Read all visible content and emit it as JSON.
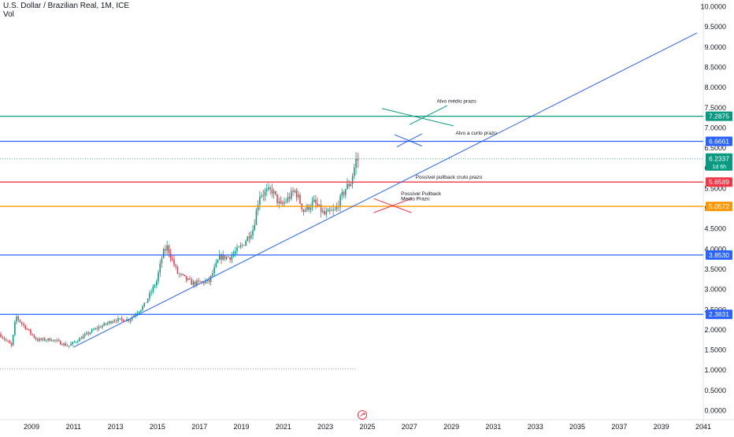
{
  "header": {
    "title": "U.S. Dollar / Brazilian Real, 1M, ICE",
    "vol_label": "Vol"
  },
  "chart_data": {
    "type": "candlestick",
    "x_start": 2008.0,
    "x_end": 2041.5,
    "ylim": [
      -0.1,
      10.1
    ],
    "x_ticks": [
      "2009",
      "2011",
      "2013",
      "2015",
      "2017",
      "2019",
      "2021",
      "2023",
      "2025",
      "2027",
      "2029",
      "2031",
      "2033",
      "2035",
      "2037",
      "2039",
      "2041"
    ],
    "y_ticks": [
      "0.0000",
      "0.5000",
      "1.0000",
      "1.5000",
      "2.0000",
      "2.5000",
      "3.0000",
      "3.5000",
      "4.0000",
      "4.5000",
      "5.0000",
      "5.5000",
      "6.0000",
      "6.5000",
      "7.0000",
      "7.5000",
      "8.0000",
      "8.5000",
      "9.0000",
      "9.5000",
      "10.0000"
    ],
    "colors": {
      "up": "#089981",
      "down": "#f23645",
      "trendline": "#2962ff"
    },
    "anchors": [
      [
        2008.0,
        1.9
      ],
      [
        2008.6,
        1.6
      ],
      [
        2008.8,
        2.35
      ],
      [
        2009.0,
        2.2
      ],
      [
        2009.8,
        1.75
      ],
      [
        2010.5,
        1.76
      ],
      [
        2011.3,
        1.6
      ],
      [
        2011.9,
        1.8
      ],
      [
        2012.5,
        2.0
      ],
      [
        2013.5,
        2.25
      ],
      [
        2014.2,
        2.25
      ],
      [
        2014.9,
        2.6
      ],
      [
        2015.5,
        3.2
      ],
      [
        2015.8,
        3.9
      ],
      [
        2016.0,
        4.05
      ],
      [
        2016.5,
        3.4
      ],
      [
        2017.2,
        3.15
      ],
      [
        2018.0,
        3.2
      ],
      [
        2018.5,
        3.8
      ],
      [
        2019.0,
        3.8
      ],
      [
        2019.6,
        4.1
      ],
      [
        2020.1,
        4.5
      ],
      [
        2020.4,
        5.35
      ],
      [
        2021.0,
        5.45
      ],
      [
        2021.4,
        5.05
      ],
      [
        2022.1,
        5.45
      ],
      [
        2022.5,
        4.95
      ],
      [
        2023.0,
        5.15
      ],
      [
        2023.5,
        4.85
      ],
      [
        2024.0,
        4.95
      ],
      [
        2024.5,
        5.5
      ],
      [
        2024.75,
        5.65
      ],
      [
        2025.0,
        6.2
      ]
    ],
    "trendline": {
      "from": [
        2011.5,
        1.57
      ],
      "to": [
        2041.2,
        9.35
      ]
    },
    "lower_guide": {
      "value": 1.03,
      "from": 2008.0,
      "to": 2025.0
    },
    "current_guide": {
      "value": 6.2337
    },
    "levels": [
      {
        "value": 7.2875,
        "label": "7.2875",
        "color": "#089981"
      },
      {
        "value": 6.6661,
        "label": "6.6661",
        "color": "#2962ff"
      },
      {
        "value": 5.6589,
        "label": "5.6589",
        "color": "#f23645"
      },
      {
        "value": 5.0572,
        "label": "5.0572",
        "color": "#ff9800"
      },
      {
        "value": 3.853,
        "label": "3.8530",
        "color": "#2962ff"
      },
      {
        "value": 2.3831,
        "label": "2.3831",
        "color": "#2962ff"
      }
    ],
    "price_tag": {
      "value": 6.2337,
      "label": "6.2337",
      "sublabel": "1d 6h",
      "color": "#089981"
    },
    "annotations": [
      {
        "text": "Alvo médio prazo",
        "x": 2028.8,
        "y": 7.62
      },
      {
        "text": "Alvo a curto prazo",
        "x": 2029.7,
        "y": 6.83
      },
      {
        "text": "Possível pullback cruto prazo",
        "x": 2027.8,
        "y": 5.74
      },
      {
        "text": "Possível Pullback",
        "x": 2027.1,
        "y": 5.33
      },
      {
        "text": "Medio Prazo",
        "x": 2027.1,
        "y": 5.2
      }
    ],
    "cross_marks": [
      {
        "color": "#089981",
        "x1": 2026.2,
        "y1": 7.48,
        "x2": 2029.6,
        "y2": 7.05
      },
      {
        "color": "#089981",
        "x1": 2027.5,
        "y1": 7.08,
        "x2": 2029.3,
        "y2": 7.55
      },
      {
        "color": "#2962ff",
        "x1": 2026.8,
        "y1": 6.83,
        "x2": 2028.1,
        "y2": 6.55
      },
      {
        "color": "#2962ff",
        "x1": 2026.9,
        "y1": 6.53,
        "x2": 2028.1,
        "y2": 6.85
      },
      {
        "color": "#f23645",
        "x1": 2025.8,
        "y1": 5.25,
        "x2": 2027.6,
        "y2": 4.9
      },
      {
        "color": "#f23645",
        "x1": 2025.8,
        "y1": 4.9,
        "x2": 2027.6,
        "y2": 5.25
      }
    ],
    "reset_icon": "reset-icon"
  }
}
